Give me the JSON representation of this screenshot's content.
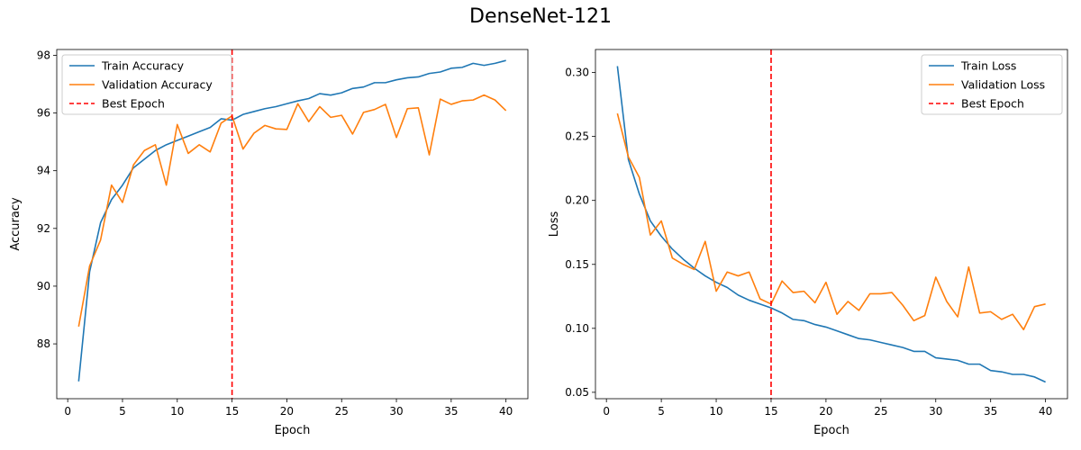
{
  "figure": {
    "suptitle": "DenseNet-121"
  },
  "chart_data": [
    {
      "type": "line",
      "xlabel": "Epoch",
      "ylabel": "Accuracy",
      "xlim": [
        -1,
        42
      ],
      "ylim": [
        86.1,
        98.2
      ],
      "xticks": [
        0,
        5,
        10,
        15,
        20,
        25,
        30,
        35,
        40
      ],
      "yticks": [
        88,
        90,
        92,
        94,
        96,
        98
      ],
      "legend_position": "top-left",
      "x": [
        1,
        2,
        3,
        4,
        5,
        6,
        7,
        8,
        9,
        10,
        11,
        12,
        13,
        14,
        15,
        16,
        17,
        18,
        19,
        20,
        21,
        22,
        23,
        24,
        25,
        26,
        27,
        28,
        29,
        30,
        31,
        32,
        33,
        34,
        35,
        36,
        37,
        38,
        39,
        40
      ],
      "series": [
        {
          "name": "Train Accuracy",
          "color": "#1f77b4",
          "values": [
            86.7,
            90.5,
            92.2,
            93.0,
            93.5,
            94.1,
            94.4,
            94.7,
            94.9,
            95.05,
            95.2,
            95.35,
            95.5,
            95.8,
            95.75,
            95.95,
            96.05,
            96.15,
            96.22,
            96.32,
            96.42,
            96.5,
            96.67,
            96.62,
            96.7,
            96.85,
            96.9,
            97.05,
            97.05,
            97.15,
            97.22,
            97.25,
            97.37,
            97.42,
            97.55,
            97.58,
            97.72,
            97.65,
            97.72,
            97.82
          ]
        },
        {
          "name": "Validation Accuracy",
          "color": "#ff7f0e",
          "values": [
            88.6,
            90.7,
            91.6,
            93.5,
            92.9,
            94.2,
            94.7,
            94.9,
            93.5,
            95.6,
            94.6,
            94.9,
            94.65,
            95.65,
            95.9,
            94.75,
            95.3,
            95.57,
            95.45,
            95.43,
            96.32,
            95.7,
            96.22,
            95.85,
            95.92,
            95.27,
            96.02,
            96.12,
            96.3,
            95.15,
            96.15,
            96.18,
            94.55,
            96.48,
            96.3,
            96.42,
            96.45,
            96.62,
            96.45,
            96.08
          ]
        }
      ],
      "best_epoch": {
        "name": "Best Epoch",
        "x": 15,
        "color": "#ff0000"
      }
    },
    {
      "type": "line",
      "xlabel": "Epoch",
      "ylabel": "Loss",
      "xlim": [
        -1,
        42
      ],
      "ylim": [
        0.045,
        0.318
      ],
      "xticks": [
        0,
        5,
        10,
        15,
        20,
        25,
        30,
        35,
        40
      ],
      "yticks": [
        0.05,
        0.1,
        0.15,
        0.2,
        0.25,
        0.3
      ],
      "ytick_labels": [
        "0.05",
        "0.10",
        "0.15",
        "0.20",
        "0.25",
        "0.30"
      ],
      "legend_position": "top-right",
      "x": [
        1,
        2,
        3,
        4,
        5,
        6,
        7,
        8,
        9,
        10,
        11,
        12,
        13,
        14,
        15,
        16,
        17,
        18,
        19,
        20,
        21,
        22,
        23,
        24,
        25,
        26,
        27,
        28,
        29,
        30,
        31,
        32,
        33,
        34,
        35,
        36,
        37,
        38,
        39,
        40
      ],
      "series": [
        {
          "name": "Train Loss",
          "color": "#1f77b4",
          "values": [
            0.305,
            0.232,
            0.205,
            0.184,
            0.172,
            0.162,
            0.154,
            0.147,
            0.141,
            0.136,
            0.132,
            0.126,
            0.122,
            0.119,
            0.116,
            0.112,
            0.107,
            0.106,
            0.103,
            0.101,
            0.098,
            0.095,
            0.092,
            0.091,
            0.089,
            0.087,
            0.085,
            0.082,
            0.082,
            0.077,
            0.076,
            0.075,
            0.072,
            0.072,
            0.067,
            0.066,
            0.064,
            0.064,
            0.062,
            0.058
          ]
        },
        {
          "name": "Validation Loss",
          "color": "#ff7f0e",
          "values": [
            0.268,
            0.234,
            0.218,
            0.173,
            0.184,
            0.155,
            0.15,
            0.146,
            0.168,
            0.129,
            0.144,
            0.141,
            0.144,
            0.123,
            0.119,
            0.137,
            0.128,
            0.129,
            0.12,
            0.136,
            0.111,
            0.121,
            0.114,
            0.127,
            0.127,
            0.128,
            0.118,
            0.106,
            0.11,
            0.14,
            0.121,
            0.109,
            0.148,
            0.112,
            0.113,
            0.107,
            0.111,
            0.099,
            0.117,
            0.119
          ]
        }
      ],
      "best_epoch": {
        "name": "Best Epoch",
        "x": 15,
        "color": "#ff0000"
      }
    }
  ]
}
